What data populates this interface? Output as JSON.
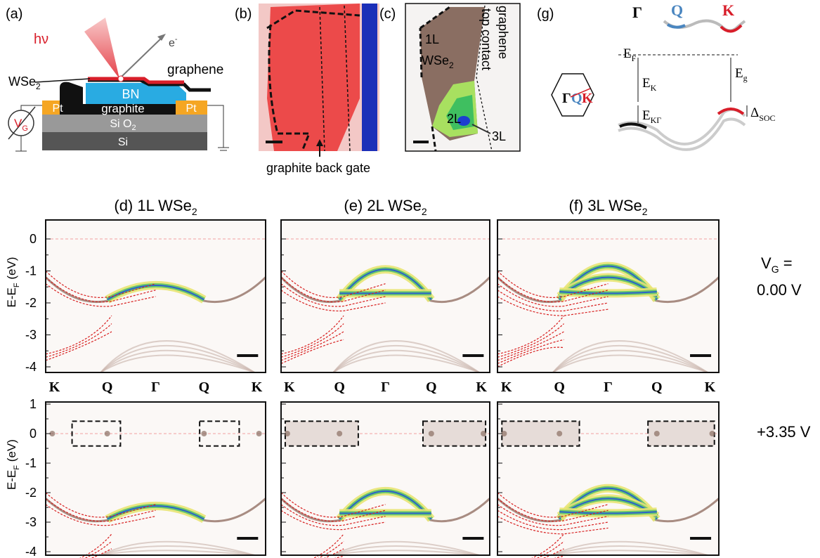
{
  "panel_labels": {
    "a": "(a)",
    "b": "(b)",
    "c": "(c)",
    "g": "(g)"
  },
  "schematic": {
    "hv": "hν",
    "electron": "e",
    "electron_sup": "-",
    "wse2": "WSe",
    "wse2_sub": "2",
    "graphene": "graphene",
    "bn": "BN",
    "graphite": "graphite",
    "pt_left": "Pt",
    "pt_right": "Pt",
    "sio2": "Si O",
    "sio2_sub": "2",
    "si": "Si",
    "vg": "V",
    "vg_sub": "G"
  },
  "panel_b": {
    "caption": "graphite back gate"
  },
  "panel_c": {
    "one_layer": "1L",
    "wse2": "WSe",
    "wse2_sub": "2",
    "two_layer": "2L",
    "three_layer": "3L",
    "contact_line1": "graphene",
    "contact_line2": "top contact"
  },
  "panel_g": {
    "gamma": "Γ",
    "q": "Q",
    "k": "K",
    "ef": "E",
    "ef_sub": "F",
    "ek": "E",
    "ek_sub": "K",
    "ekg": "E",
    "ekg_sub": "KΓ",
    "eg": "E",
    "eg_sub": "g",
    "dsoc": "Δ",
    "dsoc_sub": "SOC"
  },
  "arpes": {
    "titles": [
      {
        "text": "(d) 1L WSe",
        "sub": "2"
      },
      {
        "text": "(e) 2L WSe",
        "sub": "2"
      },
      {
        "text": "(f) 3L WSe",
        "sub": "2"
      }
    ],
    "k_labels": [
      "K",
      "Q",
      "Γ",
      "Q",
      "K"
    ],
    "top_yticks": [
      "0",
      "-1",
      "-2",
      "-3",
      "-4"
    ],
    "bottom_yticks": [
      "1",
      "0",
      "-1",
      "-2",
      "-3",
      "-4"
    ],
    "ylabel": "E-E",
    "ylabel_sub": "F",
    "ylabel_unit": " (eV)",
    "vg_label": "V",
    "vg_sub": "G",
    "vg_eq": " =",
    "vg_top": "0.00 V",
    "vg_bottom": "+3.35 V"
  }
}
